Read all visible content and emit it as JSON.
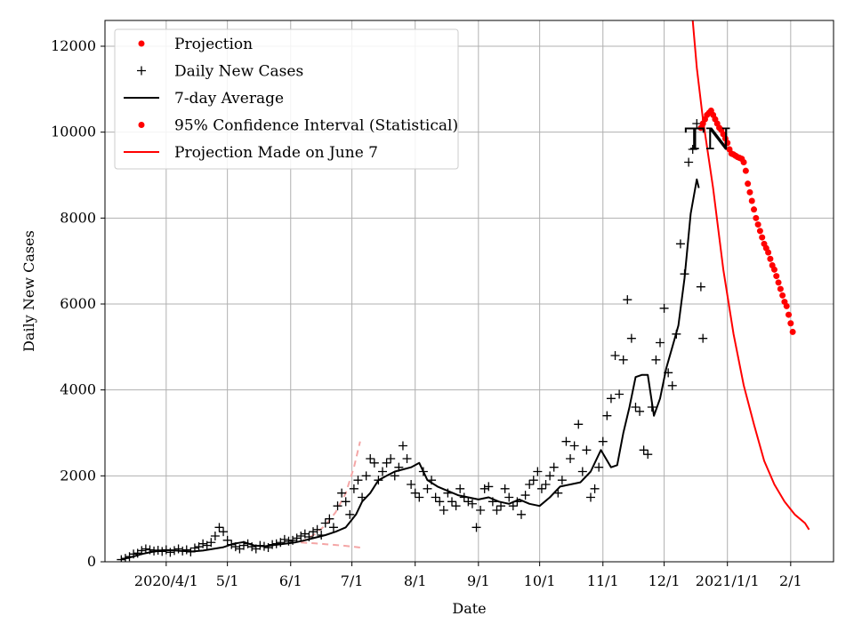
{
  "chart_data": {
    "type": "line",
    "title": "",
    "annotation": "TN",
    "xlabel": "Date",
    "ylabel": "Daily New Cases",
    "x_start": "2020-03-10",
    "x_unit": "days since 2020-03-10",
    "xlim": [
      -8,
      349
    ],
    "ylim": [
      0,
      12600
    ],
    "grid": true,
    "legend_position": "top-left",
    "x_ticks": [
      {
        "label": "2020/4/1",
        "day": 22
      },
      {
        "label": "5/1",
        "day": 52
      },
      {
        "label": "6/1",
        "day": 83
      },
      {
        "label": "7/1",
        "day": 113
      },
      {
        "label": "8/1",
        "day": 144
      },
      {
        "label": "9/1",
        "day": 175
      },
      {
        "label": "10/1",
        "day": 205
      },
      {
        "label": "11/1",
        "day": 236
      },
      {
        "label": "12/1",
        "day": 266
      },
      {
        "label": "2021/1/1",
        "day": 297
      },
      {
        "label": "2/1",
        "day": 328
      }
    ],
    "y_ticks": [
      {
        "label": "0",
        "value": 0
      },
      {
        "label": "2000",
        "value": 2000
      },
      {
        "label": "4000",
        "value": 4000
      },
      {
        "label": "6000",
        "value": 6000
      },
      {
        "label": "8000",
        "value": 8000
      },
      {
        "label": "10000",
        "value": 10000
      },
      {
        "label": "12000",
        "value": 12000
      }
    ],
    "legend": [
      {
        "label": "Projection",
        "marker": "dot",
        "color": "#ff0000"
      },
      {
        "label": "Daily New Cases",
        "marker": "plus",
        "color": "#000000"
      },
      {
        "label": "7-day Average",
        "marker": "line",
        "color": "#000000"
      },
      {
        "label": "95% Confidence Interval (Statistical)",
        "marker": "dot",
        "color": "#ff0000"
      },
      {
        "label": "Projection Made on June 7",
        "marker": "line",
        "color": "#ff0000"
      }
    ],
    "series": [
      {
        "name": "7-day Average",
        "kind": "line",
        "color": "#000000",
        "points": [
          [
            0,
            60
          ],
          [
            5,
            110
          ],
          [
            10,
            180
          ],
          [
            15,
            230
          ],
          [
            20,
            260
          ],
          [
            25,
            270
          ],
          [
            30,
            250
          ],
          [
            35,
            240
          ],
          [
            40,
            260
          ],
          [
            45,
            300
          ],
          [
            50,
            340
          ],
          [
            55,
            420
          ],
          [
            60,
            460
          ],
          [
            65,
            380
          ],
          [
            70,
            360
          ],
          [
            75,
            390
          ],
          [
            80,
            420
          ],
          [
            85,
            450
          ],
          [
            90,
            500
          ],
          [
            95,
            560
          ],
          [
            100,
            620
          ],
          [
            105,
            700
          ],
          [
            110,
            800
          ],
          [
            115,
            1100
          ],
          [
            118,
            1400
          ],
          [
            122,
            1600
          ],
          [
            126,
            1900
          ],
          [
            130,
            2000
          ],
          [
            134,
            2100
          ],
          [
            138,
            2150
          ],
          [
            142,
            2200
          ],
          [
            146,
            2300
          ],
          [
            150,
            1900
          ],
          [
            155,
            1750
          ],
          [
            160,
            1650
          ],
          [
            165,
            1550
          ],
          [
            170,
            1500
          ],
          [
            175,
            1450
          ],
          [
            180,
            1500
          ],
          [
            185,
            1400
          ],
          [
            190,
            1350
          ],
          [
            195,
            1450
          ],
          [
            200,
            1350
          ],
          [
            205,
            1300
          ],
          [
            210,
            1500
          ],
          [
            215,
            1750
          ],
          [
            220,
            1800
          ],
          [
            225,
            1850
          ],
          [
            230,
            2100
          ],
          [
            235,
            2600
          ],
          [
            240,
            2200
          ],
          [
            243,
            2250
          ],
          [
            246,
            3000
          ],
          [
            249,
            3600
          ],
          [
            252,
            4300
          ],
          [
            255,
            4350
          ],
          [
            258,
            4350
          ],
          [
            261,
            3400
          ],
          [
            264,
            3800
          ],
          [
            267,
            4500
          ],
          [
            270,
            5000
          ],
          [
            273,
            5500
          ],
          [
            276,
            6600
          ],
          [
            279,
            8100
          ],
          [
            282,
            8900
          ],
          [
            283,
            8700
          ]
        ]
      },
      {
        "name": "Projection Made on June 7",
        "kind": "line",
        "color": "#ff0000",
        "points": [
          [
            280,
            12600
          ],
          [
            282,
            11500
          ],
          [
            285,
            10300
          ],
          [
            290,
            8700
          ],
          [
            295,
            6800
          ],
          [
            300,
            5300
          ],
          [
            305,
            4100
          ],
          [
            310,
            3200
          ],
          [
            315,
            2350
          ],
          [
            320,
            1800
          ],
          [
            325,
            1400
          ],
          [
            330,
            1100
          ],
          [
            335,
            900
          ],
          [
            337,
            750
          ]
        ]
      },
      {
        "name": "Projection",
        "kind": "dots",
        "color": "#ff0000",
        "points": [
          [
            284,
            10100
          ],
          [
            285,
            10200
          ],
          [
            286,
            10300
          ],
          [
            287,
            10400
          ],
          [
            288,
            10450
          ],
          [
            289,
            10500
          ],
          [
            290,
            10400
          ],
          [
            291,
            10300
          ],
          [
            292,
            10200
          ],
          [
            293,
            10100
          ],
          [
            294,
            10050
          ],
          [
            295,
            9950
          ],
          [
            296,
            9850
          ],
          [
            297,
            9750
          ],
          [
            298,
            9600
          ],
          [
            299,
            9500
          ],
          [
            300,
            9480
          ],
          [
            301,
            9450
          ],
          [
            302,
            9420
          ],
          [
            303,
            9400
          ],
          [
            304,
            9380
          ],
          [
            305,
            9300
          ],
          [
            306,
            9100
          ],
          [
            307,
            8800
          ],
          [
            308,
            8600
          ],
          [
            309,
            8400
          ],
          [
            310,
            8200
          ],
          [
            311,
            8000
          ],
          [
            312,
            7850
          ],
          [
            313,
            7700
          ],
          [
            314,
            7550
          ],
          [
            315,
            7400
          ],
          [
            316,
            7300
          ],
          [
            317,
            7200
          ],
          [
            318,
            7050
          ],
          [
            319,
            6900
          ],
          [
            320,
            6800
          ],
          [
            321,
            6650
          ],
          [
            322,
            6500
          ],
          [
            323,
            6350
          ],
          [
            324,
            6200
          ],
          [
            325,
            6050
          ],
          [
            326,
            5950
          ],
          [
            327,
            5750
          ],
          [
            328,
            5550
          ],
          [
            329,
            5350
          ]
        ]
      },
      {
        "name": "Daily New Cases",
        "kind": "plus",
        "color": "#000000",
        "points": [
          [
            0,
            50
          ],
          [
            2,
            80
          ],
          [
            4,
            120
          ],
          [
            6,
            180
          ],
          [
            8,
            200
          ],
          [
            10,
            260
          ],
          [
            12,
            300
          ],
          [
            14,
            280
          ],
          [
            16,
            250
          ],
          [
            18,
            270
          ],
          [
            20,
            240
          ],
          [
            22,
            280
          ],
          [
            24,
            220
          ],
          [
            26,
            260
          ],
          [
            28,
            300
          ],
          [
            30,
            250
          ],
          [
            32,
            280
          ],
          [
            34,
            230
          ],
          [
            36,
            320
          ],
          [
            38,
            350
          ],
          [
            40,
            420
          ],
          [
            42,
            380
          ],
          [
            44,
            450
          ],
          [
            46,
            600
          ],
          [
            48,
            800
          ],
          [
            50,
            700
          ],
          [
            52,
            500
          ],
          [
            54,
            400
          ],
          [
            56,
            350
          ],
          [
            58,
            300
          ],
          [
            60,
            380
          ],
          [
            62,
            420
          ],
          [
            64,
            350
          ],
          [
            66,
            300
          ],
          [
            68,
            380
          ],
          [
            70,
            360
          ],
          [
            72,
            330
          ],
          [
            74,
            400
          ],
          [
            76,
            420
          ],
          [
            78,
            450
          ],
          [
            80,
            520
          ],
          [
            82,
            480
          ],
          [
            84,
            500
          ],
          [
            86,
            550
          ],
          [
            88,
            600
          ],
          [
            90,
            650
          ],
          [
            92,
            580
          ],
          [
            94,
            700
          ],
          [
            96,
            750
          ],
          [
            98,
            620
          ],
          [
            100,
            900
          ],
          [
            102,
            1000
          ],
          [
            104,
            800
          ],
          [
            106,
            1300
          ],
          [
            108,
            1600
          ],
          [
            110,
            1400
          ],
          [
            112,
            1100
          ],
          [
            114,
            1700
          ],
          [
            116,
            1900
          ],
          [
            118,
            1500
          ],
          [
            120,
            2000
          ],
          [
            122,
            2400
          ],
          [
            124,
            2300
          ],
          [
            126,
            1900
          ],
          [
            128,
            2100
          ],
          [
            130,
            2300
          ],
          [
            132,
            2400
          ],
          [
            134,
            2000
          ],
          [
            136,
            2200
          ],
          [
            138,
            2700
          ],
          [
            140,
            2400
          ],
          [
            142,
            1800
          ],
          [
            144,
            1600
          ],
          [
            146,
            1500
          ],
          [
            148,
            2100
          ],
          [
            150,
            1700
          ],
          [
            152,
            1900
          ],
          [
            154,
            1500
          ],
          [
            156,
            1400
          ],
          [
            158,
            1200
          ],
          [
            160,
            1600
          ],
          [
            162,
            1400
          ],
          [
            164,
            1300
          ],
          [
            166,
            1700
          ],
          [
            168,
            1500
          ],
          [
            170,
            1400
          ],
          [
            172,
            1350
          ],
          [
            174,
            800
          ],
          [
            176,
            1200
          ],
          [
            178,
            1700
          ],
          [
            180,
            1750
          ],
          [
            182,
            1400
          ],
          [
            184,
            1200
          ],
          [
            186,
            1300
          ],
          [
            188,
            1700
          ],
          [
            190,
            1500
          ],
          [
            192,
            1300
          ],
          [
            194,
            1400
          ],
          [
            196,
            1100
          ],
          [
            198,
            1550
          ],
          [
            200,
            1800
          ],
          [
            202,
            1900
          ],
          [
            204,
            2100
          ],
          [
            206,
            1700
          ],
          [
            208,
            1800
          ],
          [
            210,
            2000
          ],
          [
            212,
            2200
          ],
          [
            214,
            1600
          ],
          [
            216,
            1900
          ],
          [
            218,
            2800
          ],
          [
            220,
            2400
          ],
          [
            222,
            2700
          ],
          [
            224,
            3200
          ],
          [
            226,
            2100
          ],
          [
            228,
            2600
          ],
          [
            230,
            1500
          ],
          [
            232,
            1700
          ],
          [
            234,
            2200
          ],
          [
            236,
            2800
          ],
          [
            238,
            3400
          ],
          [
            240,
            3800
          ],
          [
            242,
            4800
          ],
          [
            244,
            3900
          ],
          [
            246,
            4700
          ],
          [
            248,
            6100
          ],
          [
            250,
            5200
          ],
          [
            252,
            3600
          ],
          [
            254,
            3500
          ],
          [
            256,
            2600
          ],
          [
            258,
            2500
          ],
          [
            260,
            3600
          ],
          [
            262,
            4700
          ],
          [
            264,
            5100
          ],
          [
            266,
            5900
          ],
          [
            268,
            4400
          ],
          [
            270,
            4100
          ],
          [
            272,
            5300
          ],
          [
            274,
            7400
          ],
          [
            276,
            6700
          ],
          [
            278,
            9300
          ],
          [
            280,
            9600
          ],
          [
            282,
            10200
          ],
          [
            284,
            6400
          ],
          [
            285,
            5200
          ]
        ]
      },
      {
        "name": "95% Confidence Interval (Statistical)",
        "kind": "dashed-band",
        "color": "#f4a6a6",
        "upper": [
          [
            88,
            450
          ],
          [
            95,
            650
          ],
          [
            100,
            850
          ],
          [
            105,
            1150
          ],
          [
            110,
            1600
          ],
          [
            114,
            2200
          ],
          [
            117,
            2800
          ]
        ],
        "lower": [
          [
            88,
            450
          ],
          [
            95,
            430
          ],
          [
            100,
            410
          ],
          [
            105,
            390
          ],
          [
            110,
            370
          ],
          [
            114,
            350
          ],
          [
            117,
            330
          ]
        ]
      }
    ]
  }
}
